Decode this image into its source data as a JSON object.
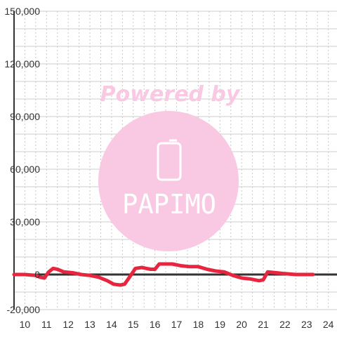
{
  "watermark": {
    "powered_by": "Powered by",
    "brand": "PAPIMO",
    "color": "#f9c9e4",
    "icon": "phone-icon"
  },
  "chart_data": {
    "type": "line",
    "title": "",
    "xlabel": "",
    "ylabel": "",
    "xlim": [
      9.5,
      24.4
    ],
    "ylim": [
      -20000,
      150000
    ],
    "x_ticks": [
      10,
      11,
      12,
      13,
      14,
      15,
      16,
      17,
      18,
      19,
      20,
      21,
      22,
      23,
      24
    ],
    "x_tick_labels": [
      "10",
      "11",
      "12",
      "13",
      "14",
      "15",
      "16",
      "17",
      "18",
      "19",
      "20",
      "21",
      "22",
      "23",
      "24"
    ],
    "y_ticks": [
      -20000,
      0,
      30000,
      60000,
      90000,
      120000,
      150000
    ],
    "y_tick_labels": [
      "-20,000",
      "0",
      "30,000",
      "60,000",
      "90,000",
      "120,000",
      "150,000"
    ],
    "grid": true,
    "legend": "none",
    "series": [
      {
        "color": "#e8253f",
        "x": [
          9.5,
          10.0,
          10.5,
          10.7,
          10.9,
          11.1,
          11.3,
          11.5,
          11.8,
          12.2,
          12.6,
          13.0,
          13.4,
          13.8,
          14.1,
          14.4,
          14.6,
          14.8,
          15.1,
          15.4,
          15.6,
          15.8,
          16.0,
          16.2,
          16.4,
          16.8,
          17.2,
          17.6,
          18.0,
          18.4,
          18.8,
          19.2,
          19.6,
          20.0,
          20.4,
          20.8,
          21.0,
          21.2,
          21.6,
          22.0,
          22.5,
          23.0,
          23.3
        ],
        "y": [
          0,
          0,
          -500,
          -1500,
          -2000,
          1500,
          3500,
          3000,
          1500,
          1000,
          0,
          -500,
          -1500,
          -3500,
          -5500,
          -6000,
          -5500,
          -2000,
          3500,
          4000,
          3500,
          3000,
          3000,
          6000,
          6000,
          6000,
          5000,
          4500,
          4500,
          3000,
          2000,
          1500,
          -500,
          -2000,
          -2500,
          -3500,
          -3000,
          1500,
          1000,
          500,
          0,
          0,
          0
        ]
      }
    ]
  }
}
